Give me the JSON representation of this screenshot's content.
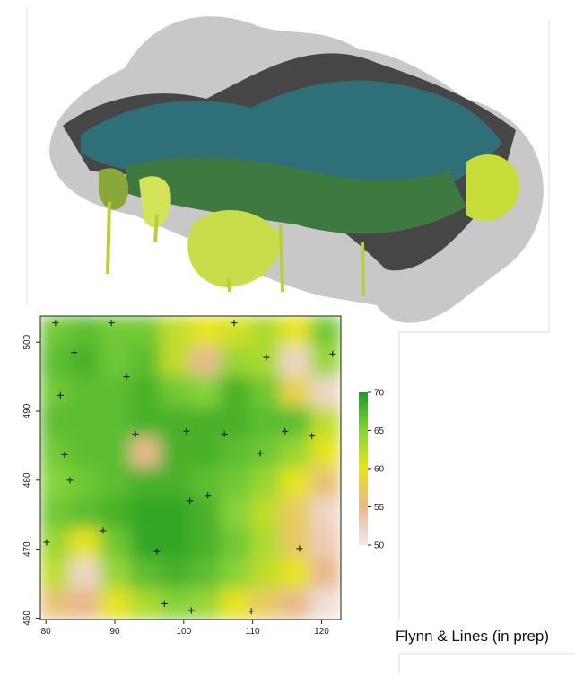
{
  "chart_data": {
    "type": "raster",
    "xlim": [
      79.2,
      122.8
    ],
    "ylim": [
      459.8,
      503.8
    ],
    "xticks": [
      80,
      90,
      100,
      110,
      120
    ],
    "yticks": [
      460,
      470,
      480,
      490,
      500
    ],
    "z": [
      [
        66,
        67,
        66,
        66,
        62,
        60,
        61,
        63,
        60,
        66
      ],
      [
        67,
        68,
        66,
        67,
        62,
        55,
        64,
        63,
        52,
        64
      ],
      [
        66,
        67,
        67,
        68,
        66,
        65,
        68,
        66,
        58,
        52
      ],
      [
        67,
        67,
        67,
        68,
        68,
        68,
        68,
        67,
        67,
        62
      ],
      [
        66,
        67,
        67,
        55,
        68,
        68,
        67,
        66,
        64,
        60
      ],
      [
        65,
        66,
        67,
        68,
        68,
        67,
        66,
        64,
        60,
        56
      ],
      [
        66,
        67,
        68,
        69,
        69,
        68,
        65,
        62,
        57,
        52
      ],
      [
        64,
        60,
        66,
        69,
        69,
        68,
        66,
        63,
        57,
        53
      ],
      [
        62,
        52,
        64,
        67,
        68,
        67,
        65,
        62,
        60,
        55
      ],
      [
        56,
        55,
        60,
        63,
        65,
        64,
        60,
        57,
        55,
        51
      ]
    ],
    "colorbar": {
      "lim": [
        50,
        70
      ],
      "ticks": [
        50,
        55,
        60,
        65,
        70
      ],
      "colors": [
        "#f3e9ea",
        "#e7b98c",
        "#e6e41e",
        "#86d33a",
        "#1e9b23"
      ]
    },
    "points": {
      "x": [
        81.4,
        89.5,
        107.3,
        84.1,
        112.0,
        121.6,
        82.1,
        91.7,
        82.7,
        93.0,
        100.4,
        105.9,
        114.7,
        118.6,
        83.5,
        111.1,
        100.9,
        103.5,
        88.3,
        80.1,
        96.1,
        116.8,
        97.2,
        101.1,
        109.8
      ],
      "y": [
        502.8,
        502.8,
        502.8,
        498.5,
        497.8,
        498.3,
        492.3,
        495.0,
        483.7,
        486.7,
        487.1,
        486.7,
        487.1,
        486.4,
        480.0,
        483.9,
        477.0,
        477.8,
        472.7,
        471.0,
        469.7,
        470.1,
        462.1,
        461.1,
        461.0
      ]
    }
  },
  "credit": "Flynn & Lines (in prep)"
}
